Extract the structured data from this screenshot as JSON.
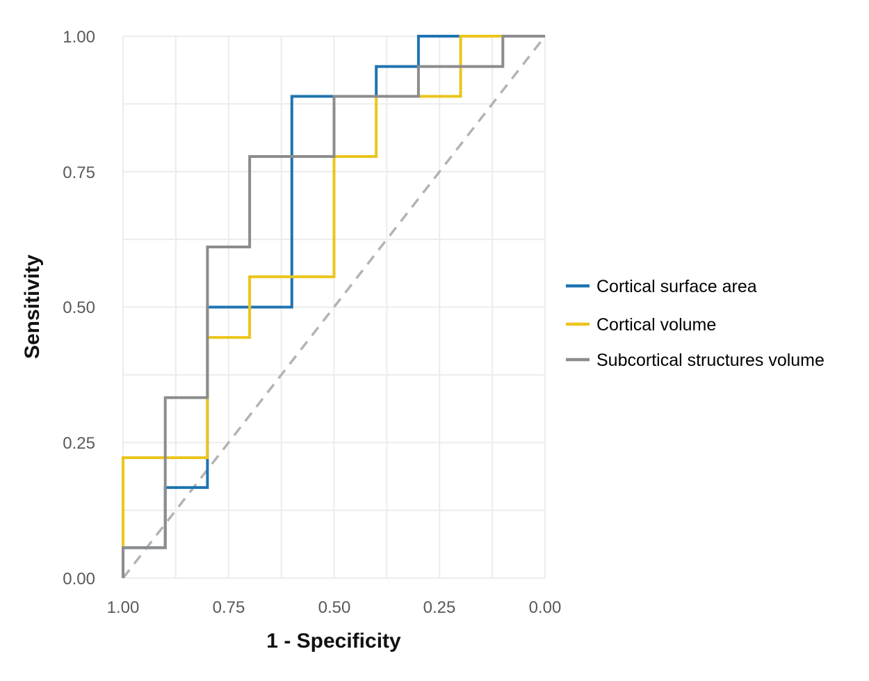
{
  "chart_data": {
    "type": "line",
    "subtype": "roc-step-curves",
    "title": "",
    "xlabel": "1 - Specificity",
    "ylabel": "Sensitivity",
    "x_axis": {
      "ticks": [
        "1.00",
        "0.75",
        "0.50",
        "0.25",
        "0.00"
      ],
      "tick_values": [
        1.0,
        0.75,
        0.5,
        0.25,
        0.0
      ],
      "range": [
        1.0,
        0.0
      ],
      "reversed": true
    },
    "y_axis": {
      "ticks": [
        "0.00",
        "0.25",
        "0.50",
        "0.75",
        "1.00"
      ],
      "tick_values": [
        0.0,
        0.25,
        0.5,
        0.75,
        1.0
      ],
      "range": [
        0.0,
        1.0
      ]
    },
    "grid": {
      "on": true,
      "interval": 0.125,
      "color": "#ececec"
    },
    "legend_position": "right",
    "series": [
      {
        "name": "Cortical surface area",
        "color": "#1f74b0",
        "points": [
          [
            1.0,
            0.0
          ],
          [
            1.0,
            0.056
          ],
          [
            0.9,
            0.056
          ],
          [
            0.9,
            0.167
          ],
          [
            0.8,
            0.167
          ],
          [
            0.8,
            0.5
          ],
          [
            0.6,
            0.5
          ],
          [
            0.6,
            0.889
          ],
          [
            0.4,
            0.889
          ],
          [
            0.4,
            0.944
          ],
          [
            0.3,
            0.944
          ],
          [
            0.3,
            1.0
          ],
          [
            0.0,
            1.0
          ]
        ]
      },
      {
        "name": "Cortical volume",
        "color": "#ebc51d",
        "points": [
          [
            1.0,
            0.0
          ],
          [
            1.0,
            0.222
          ],
          [
            0.8,
            0.222
          ],
          [
            0.8,
            0.444
          ],
          [
            0.7,
            0.444
          ],
          [
            0.7,
            0.556
          ],
          [
            0.5,
            0.556
          ],
          [
            0.5,
            0.778
          ],
          [
            0.4,
            0.778
          ],
          [
            0.4,
            0.889
          ],
          [
            0.2,
            0.889
          ],
          [
            0.2,
            1.0
          ],
          [
            0.0,
            1.0
          ]
        ]
      },
      {
        "name": "Subcortical structures volume",
        "color": "#8c8c8c",
        "points": [
          [
            1.0,
            0.0
          ],
          [
            1.0,
            0.056
          ],
          [
            0.9,
            0.056
          ],
          [
            0.9,
            0.333
          ],
          [
            0.8,
            0.333
          ],
          [
            0.8,
            0.611
          ],
          [
            0.7,
            0.611
          ],
          [
            0.7,
            0.778
          ],
          [
            0.5,
            0.778
          ],
          [
            0.5,
            0.889
          ],
          [
            0.3,
            0.889
          ],
          [
            0.3,
            0.944
          ],
          [
            0.1,
            0.944
          ],
          [
            0.1,
            1.0
          ],
          [
            0.0,
            1.0
          ]
        ]
      }
    ],
    "reference_line": {
      "name": "chance diagonal",
      "style": "dashed",
      "color": "#b3b3b3",
      "points": [
        [
          1.0,
          0.0
        ],
        [
          0.0,
          1.0
        ]
      ]
    }
  },
  "colors": {
    "background": "#ffffff",
    "tick_text": "#595959",
    "axis_title_text": "#111111",
    "legend_text": "#000000",
    "grid": "#ececec"
  }
}
